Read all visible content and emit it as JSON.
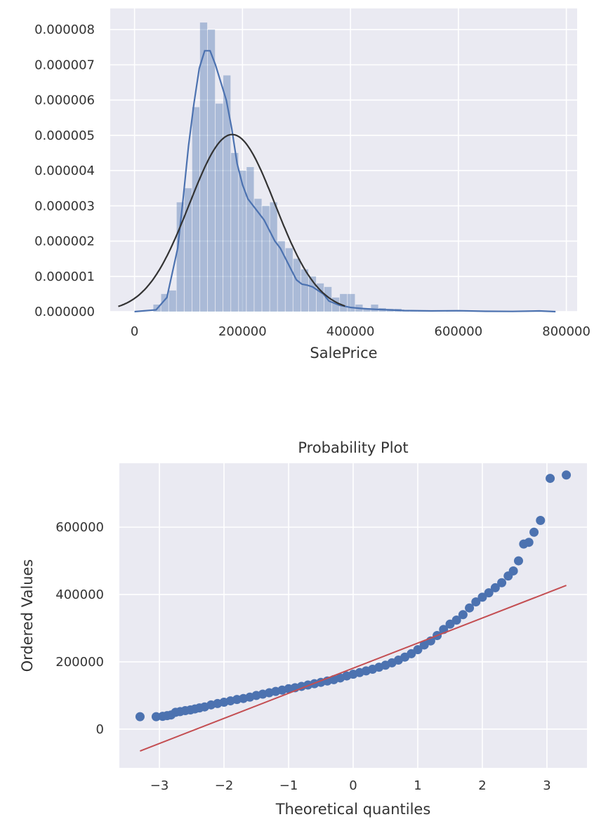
{
  "chart_data": [
    {
      "type": "histogram",
      "title": "",
      "xlabel": "SalePrice",
      "ylabel": "",
      "xlim": [
        -45000,
        820000
      ],
      "ylim": [
        0,
        8.6e-06
      ],
      "grid": true,
      "style": "darkgrid",
      "x_ticks": [
        0,
        200000,
        400000,
        600000,
        800000
      ],
      "x_tick_labels": [
        "0",
        "200000",
        "400000",
        "600000",
        "800000"
      ],
      "y_ticks": [
        0,
        1e-06,
        2e-06,
        3e-06,
        4e-06,
        5e-06,
        6e-06,
        7e-06,
        8e-06
      ],
      "y_tick_labels": [
        "0.000000",
        "0.000001",
        "0.000002",
        "0.000003",
        "0.000004",
        "0.000005",
        "0.000006",
        "0.000007",
        "0.000008"
      ],
      "histogram": {
        "color": "#4c72b0",
        "bin_width": 14400,
        "bin_starts": [
          34900,
          49300,
          63700,
          78100,
          92500,
          106900,
          121300,
          135700,
          150100,
          164500,
          178900,
          193300,
          207700,
          222100,
          236500,
          250900,
          265300,
          279700,
          294100,
          308500,
          322900,
          337300,
          351700,
          366100,
          380500,
          394900,
          409300,
          423700,
          438100,
          452500,
          466900,
          481300,
          495700,
          510100,
          524500,
          538900,
          553300,
          567700,
          582100,
          596500,
          610900,
          625300,
          639700,
          654100,
          668500,
          682900,
          697300,
          711700,
          726100,
          740500
        ],
        "densities": [
          2e-07,
          5e-07,
          6e-07,
          3.1e-06,
          3.5e-06,
          5.8e-06,
          8.2e-06,
          8e-06,
          5.9e-06,
          6.7e-06,
          4.5e-06,
          4e-06,
          4.1e-06,
          3.2e-06,
          3e-06,
          3.1e-06,
          2e-06,
          1.8e-06,
          1.5e-06,
          1.2e-06,
          1e-06,
          8e-07,
          7e-07,
          4e-07,
          5e-07,
          5e-07,
          2e-07,
          1e-07,
          2e-07,
          1e-07,
          8e-08,
          8e-08,
          5e-08,
          3e-08,
          2e-08,
          2e-08,
          1e-08,
          2e-08,
          1e-08,
          2e-08,
          1e-08,
          1e-08,
          0,
          0,
          0,
          0,
          0,
          0,
          3e-08,
          3e-08
        ]
      },
      "series": [
        {
          "type": "line",
          "color": "#4c72b0",
          "x": [
            0,
            40000,
            60000,
            80000,
            90000,
            100000,
            110000,
            120000,
            130000,
            140000,
            150000,
            160000,
            170000,
            180000,
            190000,
            200000,
            210000,
            220000,
            230000,
            240000,
            250000,
            260000,
            270000,
            280000,
            290000,
            300000,
            310000,
            320000,
            330000,
            340000,
            350000,
            360000,
            380000,
            400000,
            420000,
            440000,
            470000,
            500000,
            550000,
            600000,
            650000,
            700000,
            750000,
            780000
          ],
          "y": [
            0,
            5e-08,
            4e-07,
            1.8e-06,
            3.2e-06,
            4.7e-06,
            5.9e-06,
            6.9e-06,
            7.4e-06,
            7.4e-06,
            7e-06,
            6.5e-06,
            6e-06,
            5.2e-06,
            4.2e-06,
            3.6e-06,
            3.2e-06,
            3e-06,
            2.8e-06,
            2.6e-06,
            2.3e-06,
            2e-06,
            1.8e-06,
            1.5e-06,
            1.2e-06,
            9e-07,
            7.8e-07,
            7.5e-07,
            7e-07,
            6e-07,
            5e-07,
            3e-07,
            1.8e-07,
            1.2e-07,
            9e-08,
            7e-08,
            5e-08,
            3e-08,
            2e-08,
            2.5e-08,
            1e-08,
            5e-09,
            2e-08,
            0
          ]
        },
        {
          "type": "line",
          "color": "#333333",
          "distribution": "normal fit",
          "mean": 180921,
          "std": 79415,
          "x_range": [
            -30000,
            390000
          ]
        }
      ]
    },
    {
      "type": "scatter",
      "title": "Probability Plot",
      "xlabel": "Theoretical quantiles",
      "ylabel": "Ordered Values",
      "xlim": [
        -3.62,
        3.62
      ],
      "ylim": [
        -115000,
        790000
      ],
      "grid": true,
      "style": "darkgrid",
      "x_ticks": [
        -3,
        -2,
        -1,
        0,
        1,
        2,
        3
      ],
      "x_tick_labels": [
        "−3",
        "−2",
        "−1",
        "0",
        "1",
        "2",
        "3"
      ],
      "y_ticks": [
        0,
        200000,
        400000,
        600000
      ],
      "y_tick_labels": [
        "0",
        "200000",
        "400000",
        "600000"
      ],
      "series": [
        {
          "type": "scatter",
          "color": "#4c72b0",
          "x": [
            -3.3,
            -3.05,
            -2.95,
            -2.88,
            -2.82,
            -2.75,
            -2.68,
            -2.6,
            -2.52,
            -2.45,
            -2.38,
            -2.3,
            -2.2,
            -2.1,
            -2.0,
            -1.9,
            -1.8,
            -1.7,
            -1.6,
            -1.5,
            -1.4,
            -1.3,
            -1.2,
            -1.1,
            -1.0,
            -0.9,
            -0.8,
            -0.7,
            -0.6,
            -0.5,
            -0.4,
            -0.3,
            -0.2,
            -0.1,
            0.0,
            0.1,
            0.2,
            0.3,
            0.4,
            0.5,
            0.6,
            0.7,
            0.8,
            0.9,
            1.0,
            1.1,
            1.2,
            1.3,
            1.4,
            1.5,
            1.6,
            1.7,
            1.8,
            1.9,
            2.0,
            2.1,
            2.2,
            2.3,
            2.4,
            2.48,
            2.56,
            2.64,
            2.72,
            2.8,
            2.9,
            3.05,
            3.3
          ],
          "y": [
            37000,
            37000,
            38000,
            40000,
            42000,
            50000,
            52000,
            55000,
            57000,
            60000,
            63000,
            66000,
            72000,
            76000,
            80000,
            84000,
            88000,
            91000,
            95000,
            100000,
            104000,
            108000,
            112000,
            116000,
            120000,
            123000,
            127000,
            131000,
            135000,
            139000,
            143000,
            147000,
            152000,
            158000,
            163000,
            168000,
            173000,
            178000,
            184000,
            190000,
            197000,
            205000,
            214000,
            224000,
            236000,
            250000,
            262000,
            278000,
            296000,
            312000,
            324000,
            340000,
            360000,
            378000,
            392000,
            405000,
            420000,
            435000,
            455000,
            470000,
            500000,
            550000,
            555000,
            585000,
            620000,
            745000,
            755000
          ]
        },
        {
          "type": "line",
          "color": "#c44e52",
          "x": [
            -3.3,
            3.3
          ],
          "y": [
            -65000,
            427000
          ]
        }
      ]
    }
  ]
}
